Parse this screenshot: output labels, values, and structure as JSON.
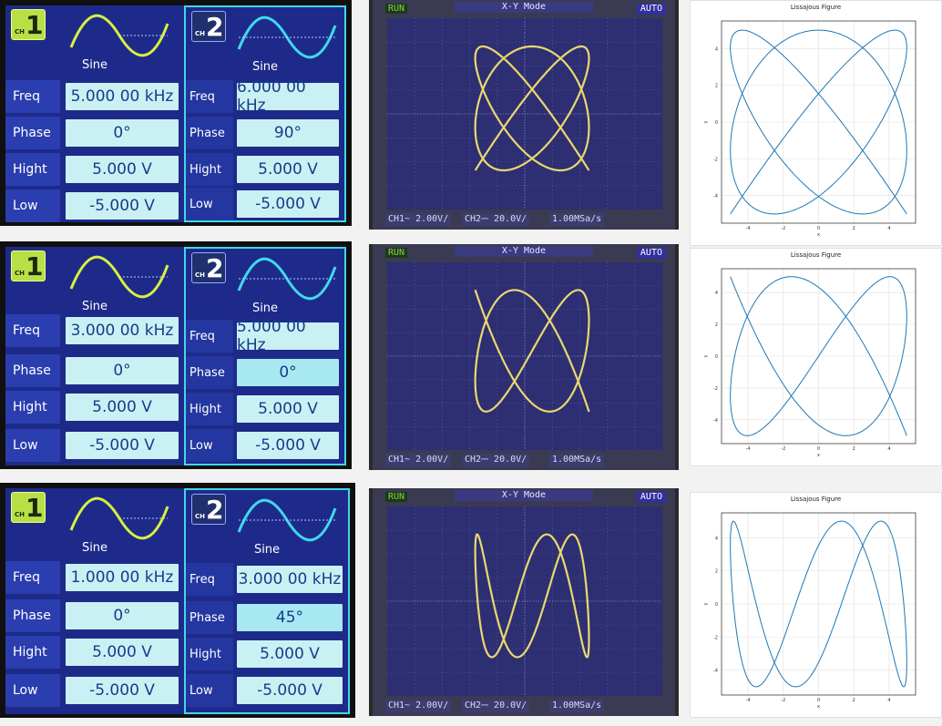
{
  "generators": [
    {
      "ch1": {
        "badge": "1",
        "badge_small": "CH",
        "wave": "Sine",
        "rows": [
          {
            "label": "Freq",
            "value": "5.000 00 kHz"
          },
          {
            "label": "Phase",
            "value": "0°"
          },
          {
            "label": "Hight",
            "value": "5.000 V"
          },
          {
            "label": "Low",
            "value": "-5.000 V"
          }
        ]
      },
      "ch2": {
        "badge": "2",
        "badge_small": "CH",
        "wave": "Sine",
        "rows": [
          {
            "label": "Freq",
            "value": "6.000 00 kHz"
          },
          {
            "label": "Phase",
            "value": "90°"
          },
          {
            "label": "Hight",
            "value": "5.000 V"
          },
          {
            "label": "Low",
            "value": "-5.000 V"
          }
        ]
      }
    },
    {
      "ch1": {
        "badge": "1",
        "badge_small": "CH",
        "wave": "Sine",
        "rows": [
          {
            "label": "Freq",
            "value": "3.000 00 kHz"
          },
          {
            "label": "Phase",
            "value": "0°"
          },
          {
            "label": "Hight",
            "value": "5.000 V"
          },
          {
            "label": "Low",
            "value": "-5.000 V"
          }
        ]
      },
      "ch2": {
        "badge": "2",
        "badge_small": "CH",
        "wave": "Sine",
        "rows": [
          {
            "label": "Freq",
            "value": "5.000 00 kHz"
          },
          {
            "label": "Phase",
            "value": "0°"
          },
          {
            "label": "Hight",
            "value": "5.000 V"
          },
          {
            "label": "Low",
            "value": "-5.000 V"
          }
        ]
      }
    },
    {
      "ch1": {
        "badge": "1",
        "badge_small": "CH",
        "wave": "Sine",
        "rows": [
          {
            "label": "Freq",
            "value": "1.000 00 kHz"
          },
          {
            "label": "Phase",
            "value": "0°"
          },
          {
            "label": "Hight",
            "value": "5.000 V"
          },
          {
            "label": "Low",
            "value": "-5.000 V"
          }
        ]
      },
      "ch2": {
        "badge": "2",
        "badge_small": "CH",
        "wave": "Sine",
        "rows": [
          {
            "label": "Freq",
            "value": "3.000 00 kHz"
          },
          {
            "label": "Phase",
            "value": "45°"
          },
          {
            "label": "Hight",
            "value": "5.000 V"
          },
          {
            "label": "Low",
            "value": "-5.000 V"
          }
        ]
      }
    }
  ],
  "scopes": [
    {
      "status": "RUN",
      "mode": "X-Y Mode",
      "trigger": "AUTO",
      "ch1": "CH1~ 2.00V/",
      "ch2": "CH2⎓ 20.0V/",
      "rate": "1.00MSa/s",
      "fx": 5,
      "fy": 6,
      "phase_deg": 90
    },
    {
      "status": "RUN",
      "mode": "X-Y Mode",
      "trigger": "AUTO",
      "ch1": "CH1~ 2.00V/",
      "ch2": "CH2⎓ 20.0V/",
      "rate": "1.00MSa/s",
      "fx": 3,
      "fy": 5,
      "phase_deg": 0
    },
    {
      "status": "RUN",
      "mode": "X-Y Mode",
      "trigger": "AUTO",
      "ch1": "CH1~ 2.00V/",
      "ch2": "CH2⎓ 20.0V/",
      "rate": "1.00MSa/s",
      "fx": 1,
      "fy": 3,
      "phase_deg": 45
    }
  ],
  "figures": [
    {
      "title": "Lissajous Figure",
      "xlabel": "x",
      "ylabel": "y",
      "fx": 5,
      "fy": 6,
      "phase_deg": 90,
      "amplitude": 5,
      "xticks": [
        -4,
        -2,
        0,
        2,
        4
      ],
      "yticks": [
        -4,
        -2,
        0,
        2,
        4
      ],
      "grid": true
    },
    {
      "title": "Lissajous Figure",
      "xlabel": "x",
      "ylabel": "y",
      "fx": 3,
      "fy": 5,
      "phase_deg": 0,
      "amplitude": 5,
      "xticks": [
        -4,
        -2,
        0,
        2,
        4
      ],
      "yticks": [
        -4,
        -2,
        0,
        2,
        4
      ],
      "grid": true
    },
    {
      "title": "Lissajous Figure",
      "xlabel": "x",
      "ylabel": "y",
      "fx": 1,
      "fy": 3,
      "phase_deg": 45,
      "amplitude": 5,
      "xticks": [
        -4,
        -2,
        0,
        2,
        4
      ],
      "yticks": [
        -4,
        -2,
        0,
        2,
        4
      ],
      "grid": true
    }
  ],
  "colors": {
    "ch1_wave": "#d8f040",
    "ch2_wave": "#40d8f0",
    "trace": "#e8d870",
    "plot_line": "#1f77b4"
  }
}
